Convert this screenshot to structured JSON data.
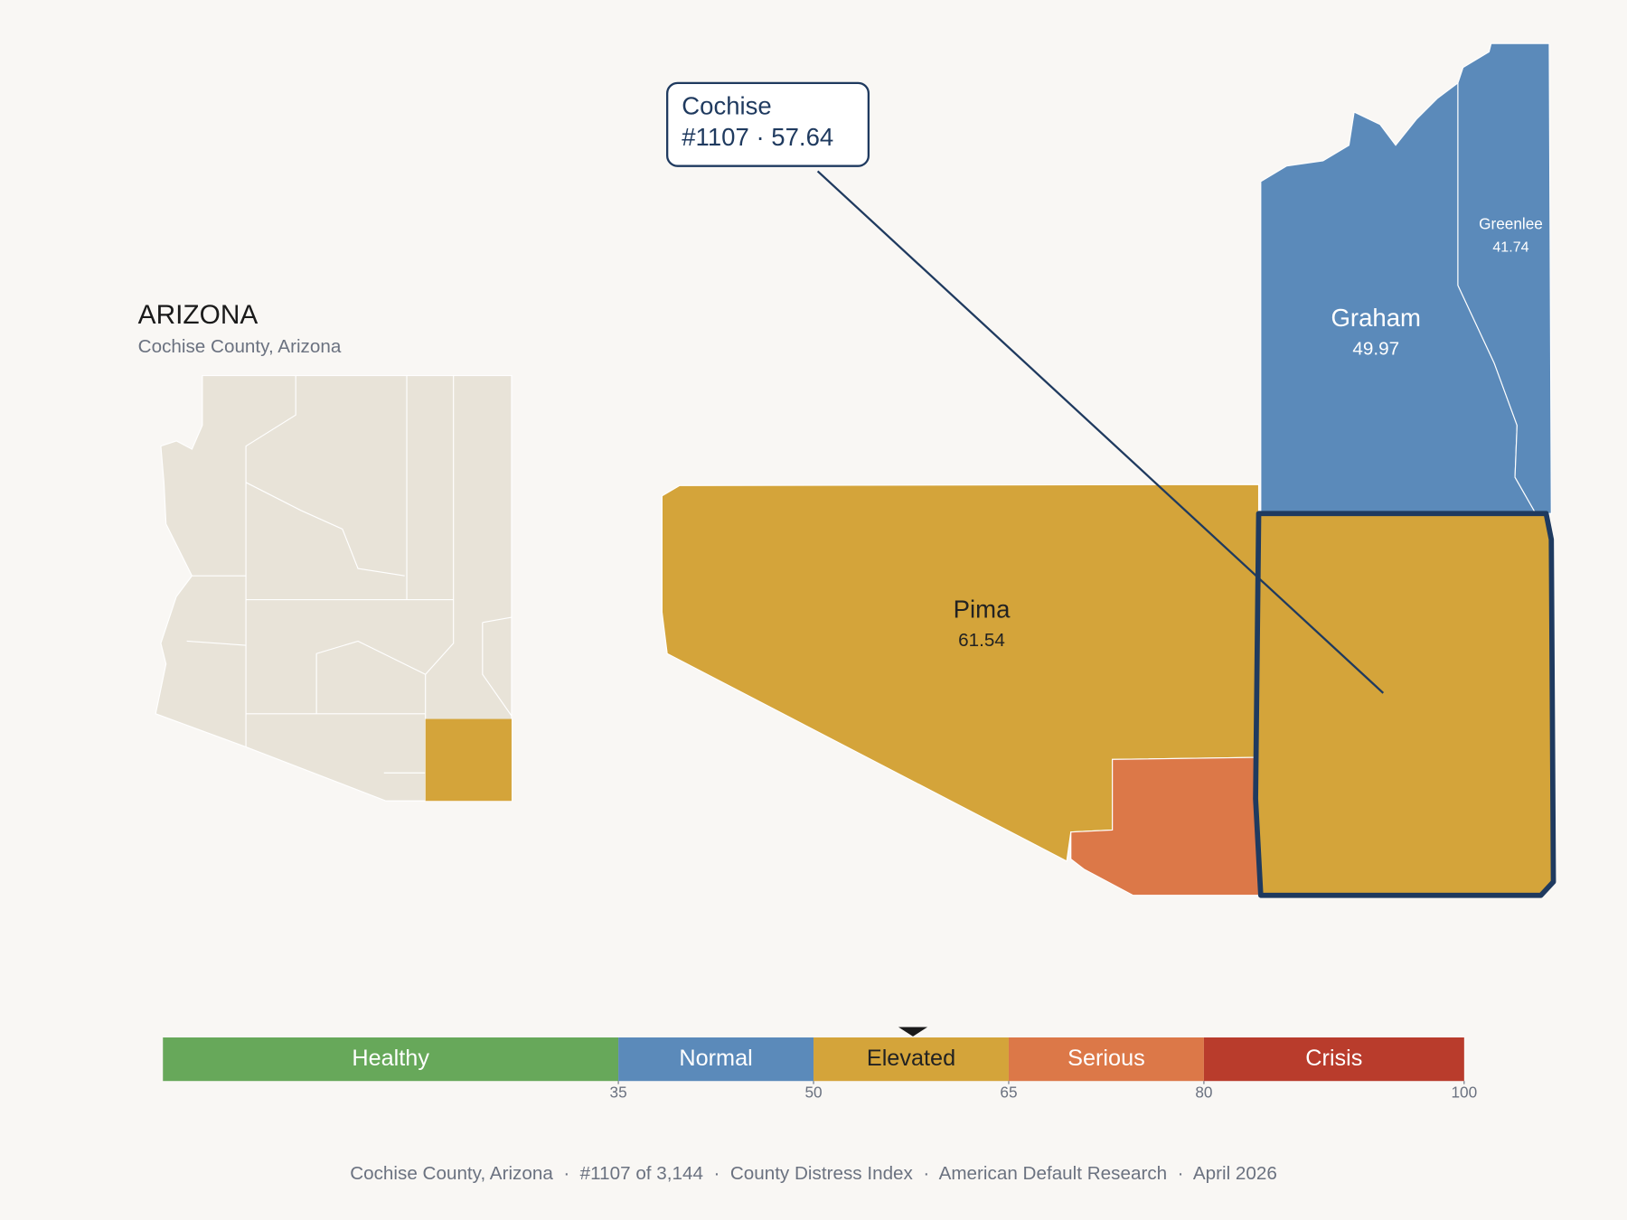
{
  "state": {
    "title": "ARIZONA",
    "subtitle": "Cochise County, Arizona"
  },
  "callout": {
    "name": "Cochise",
    "text": "#1107 · 57.64",
    "value": 57.64
  },
  "counties": [
    {
      "name": "Graham",
      "value_label": "49.97",
      "color": "#5b8aba",
      "label_color": "#ffffff"
    },
    {
      "name": "Greenlee",
      "value_label": "41.74",
      "color": "#5b8aba",
      "label_color": "#ffffff"
    },
    {
      "name": "Pima",
      "value_label": "61.54",
      "color": "#d4a43a",
      "label_color": "#222222"
    }
  ],
  "highlight": {
    "color": "#d4a43a",
    "outline": "#1f3a5f"
  },
  "legend": {
    "xlim": [
      0,
      100
    ],
    "ticks": [
      35,
      50,
      65,
      80,
      100
    ],
    "bands": [
      {
        "label": "Healthy",
        "max": 35,
        "color": "#67a85a",
        "text_color": "#ffffff"
      },
      {
        "label": "Normal",
        "max": 50,
        "color": "#5b8aba",
        "text_color": "#ffffff"
      },
      {
        "label": "Elevated",
        "max": 65,
        "color": "#d4a43a",
        "text_color": "#222222"
      },
      {
        "label": "Serious",
        "max": 80,
        "color": "#dc7848",
        "text_color": "#ffffff"
      },
      {
        "label": "Crisis",
        "max": 100,
        "color": "#b93c2c",
        "text_color": "#ffffff"
      }
    ]
  },
  "footer": "Cochise County, Arizona  ·  #1107 of 3,144  ·  County Distress Index  ·  American Default Research  ·  April 2026"
}
